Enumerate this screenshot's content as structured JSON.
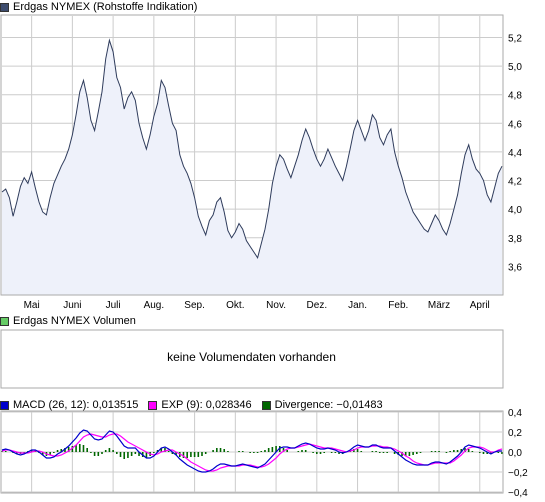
{
  "colors": {
    "price_line": "#2f3c5c",
    "price_fill": "#eef1fa",
    "grid": "#cccccc",
    "macd": "#0000cc",
    "exp": "#ff00ff",
    "divergence": "#006600",
    "volume_swatch": "#66cc66",
    "price_swatch": "#3d4c6e"
  },
  "price_panel": {
    "legend": "Erdgas NYMEX (Rohstoffe Indikation)"
  },
  "volume_panel": {
    "legend": "Erdgas NYMEX Volumen",
    "message": "keine Volumendaten vorhanden"
  },
  "macd_panel": {
    "macd_label": "MACD (26, 12): 0,013515",
    "exp_label": "EXP (9): 0,028346",
    "divergence_label": "Divergence: −0,01483"
  },
  "chart_data": [
    {
      "type": "area",
      "title": "Erdgas NYMEX (Rohstoffe Indikation)",
      "xlabel": "",
      "ylabel": "",
      "ylim": [
        3.4,
        5.35
      ],
      "y_ticks": [
        "5,2",
        "5,0",
        "4,8",
        "4,6",
        "4,4",
        "4,2",
        "4,0",
        "3,8",
        "3,6"
      ],
      "y_tick_values": [
        5.2,
        5.0,
        4.8,
        4.6,
        4.4,
        4.2,
        4.0,
        3.8,
        3.6
      ],
      "x_ticks": [
        "Mai",
        "Juni",
        "Juli",
        "Aug.",
        "Sep.",
        "Okt.",
        "Nov.",
        "Dez.",
        "Jan.",
        "Feb.",
        "März",
        "April"
      ],
      "x_tick_index": [
        8,
        19,
        30,
        41,
        52,
        63,
        74,
        85,
        96,
        107,
        118,
        129
      ],
      "x_range": [
        0,
        135
      ],
      "grid": true,
      "values": [
        4.12,
        4.14,
        4.08,
        3.95,
        4.05,
        4.16,
        4.22,
        4.18,
        4.26,
        4.15,
        4.05,
        3.98,
        3.96,
        4.08,
        4.18,
        4.24,
        4.3,
        4.35,
        4.42,
        4.52,
        4.66,
        4.82,
        4.9,
        4.78,
        4.62,
        4.55,
        4.68,
        4.82,
        5.05,
        5.18,
        5.1,
        4.92,
        4.85,
        4.7,
        4.78,
        4.82,
        4.76,
        4.6,
        4.5,
        4.42,
        4.52,
        4.65,
        4.74,
        4.9,
        4.85,
        4.72,
        4.6,
        4.55,
        4.38,
        4.3,
        4.25,
        4.18,
        4.08,
        3.95,
        3.88,
        3.82,
        3.92,
        3.96,
        4.05,
        4.08,
        3.98,
        3.85,
        3.8,
        3.84,
        3.9,
        3.86,
        3.78,
        3.74,
        3.7,
        3.66,
        3.76,
        3.86,
        4.0,
        4.18,
        4.3,
        4.38,
        4.35,
        4.28,
        4.22,
        4.3,
        4.38,
        4.48,
        4.56,
        4.5,
        4.42,
        4.35,
        4.3,
        4.35,
        4.42,
        4.36,
        4.3,
        4.25,
        4.2,
        4.3,
        4.42,
        4.55,
        4.62,
        4.55,
        4.48,
        4.55,
        4.66,
        4.62,
        4.5,
        4.45,
        4.52,
        4.56,
        4.4,
        4.3,
        4.22,
        4.12,
        4.05,
        3.98,
        3.94,
        3.9,
        3.86,
        3.84,
        3.9,
        3.96,
        3.92,
        3.86,
        3.82,
        3.9,
        4.0,
        4.1,
        4.25,
        4.38,
        4.45,
        4.35,
        4.28,
        4.25,
        4.2,
        4.1,
        4.05,
        4.15,
        4.25,
        4.3
      ]
    },
    {
      "type": "line",
      "title": "",
      "ylim": [
        -0.4,
        0.4
      ],
      "y_ticks": [
        "0,4",
        "0,2",
        "0,0",
        "−0,2",
        "−0,4"
      ],
      "y_tick_values": [
        0.4,
        0.2,
        0.0,
        -0.2,
        -0.4
      ],
      "x_range": [
        0,
        135
      ],
      "series": [
        {
          "name": "MACD (26, 12): 0,013515",
          "values": [
            0.02,
            0.03,
            0.02,
            0.0,
            -0.02,
            -0.03,
            -0.02,
            0.0,
            0.02,
            0.02,
            0.0,
            -0.03,
            -0.06,
            -0.06,
            -0.05,
            -0.02,
            0.0,
            0.03,
            0.06,
            0.1,
            0.14,
            0.19,
            0.22,
            0.21,
            0.17,
            0.13,
            0.12,
            0.13,
            0.17,
            0.21,
            0.2,
            0.16,
            0.11,
            0.06,
            0.04,
            0.04,
            0.04,
            0.0,
            -0.03,
            -0.06,
            -0.06,
            -0.04,
            0.0,
            0.04,
            0.05,
            0.03,
            0.0,
            -0.03,
            -0.07,
            -0.1,
            -0.13,
            -0.15,
            -0.17,
            -0.19,
            -0.2,
            -0.2,
            -0.19,
            -0.17,
            -0.14,
            -0.12,
            -0.12,
            -0.13,
            -0.14,
            -0.14,
            -0.13,
            -0.12,
            -0.13,
            -0.14,
            -0.15,
            -0.16,
            -0.14,
            -0.12,
            -0.08,
            -0.04,
            0.0,
            0.04,
            0.05,
            0.05,
            0.04,
            0.04,
            0.06,
            0.08,
            0.09,
            0.08,
            0.06,
            0.04,
            0.03,
            0.03,
            0.04,
            0.03,
            0.02,
            0.0,
            -0.01,
            0.0,
            0.02,
            0.05,
            0.07,
            0.06,
            0.05,
            0.05,
            0.07,
            0.07,
            0.05,
            0.04,
            0.04,
            0.04,
            0.01,
            -0.02,
            -0.05,
            -0.08,
            -0.1,
            -0.12,
            -0.13,
            -0.13,
            -0.13,
            -0.13,
            -0.11,
            -0.1,
            -0.1,
            -0.11,
            -0.12,
            -0.1,
            -0.07,
            -0.04,
            0.0,
            0.05,
            0.07,
            0.06,
            0.05,
            0.04,
            0.02,
            0.0,
            -0.02,
            0.0,
            0.01,
            0.01
          ]
        },
        {
          "name": "EXP (9): 0,028346",
          "values": [
            0.01,
            0.02,
            0.02,
            0.01,
            0.0,
            -0.01,
            -0.01,
            -0.01,
            0.0,
            0.01,
            0.01,
            0.0,
            -0.02,
            -0.03,
            -0.04,
            -0.04,
            -0.03,
            -0.01,
            0.01,
            0.04,
            0.07,
            0.11,
            0.15,
            0.17,
            0.18,
            0.17,
            0.16,
            0.15,
            0.15,
            0.17,
            0.18,
            0.18,
            0.16,
            0.13,
            0.1,
            0.08,
            0.06,
            0.04,
            0.02,
            0.0,
            -0.02,
            -0.03,
            -0.02,
            0.0,
            0.01,
            0.02,
            0.02,
            0.0,
            -0.02,
            -0.04,
            -0.07,
            -0.1,
            -0.12,
            -0.14,
            -0.16,
            -0.18,
            -0.19,
            -0.19,
            -0.18,
            -0.16,
            -0.15,
            -0.14,
            -0.14,
            -0.14,
            -0.14,
            -0.13,
            -0.13,
            -0.13,
            -0.14,
            -0.15,
            -0.15,
            -0.14,
            -0.12,
            -0.09,
            -0.06,
            -0.02,
            0.01,
            0.03,
            0.04,
            0.04,
            0.05,
            0.06,
            0.07,
            0.08,
            0.07,
            0.06,
            0.05,
            0.04,
            0.04,
            0.04,
            0.03,
            0.02,
            0.01,
            0.0,
            0.01,
            0.02,
            0.04,
            0.05,
            0.05,
            0.05,
            0.06,
            0.06,
            0.06,
            0.05,
            0.05,
            0.04,
            0.03,
            0.01,
            -0.01,
            -0.04,
            -0.06,
            -0.09,
            -0.11,
            -0.12,
            -0.13,
            -0.13,
            -0.12,
            -0.11,
            -0.11,
            -0.11,
            -0.11,
            -0.11,
            -0.09,
            -0.06,
            -0.03,
            0.01,
            0.04,
            0.05,
            0.05,
            0.05,
            0.04,
            0.02,
            0.0,
            0.0,
            0.02,
            0.03
          ]
        }
      ]
    }
  ]
}
